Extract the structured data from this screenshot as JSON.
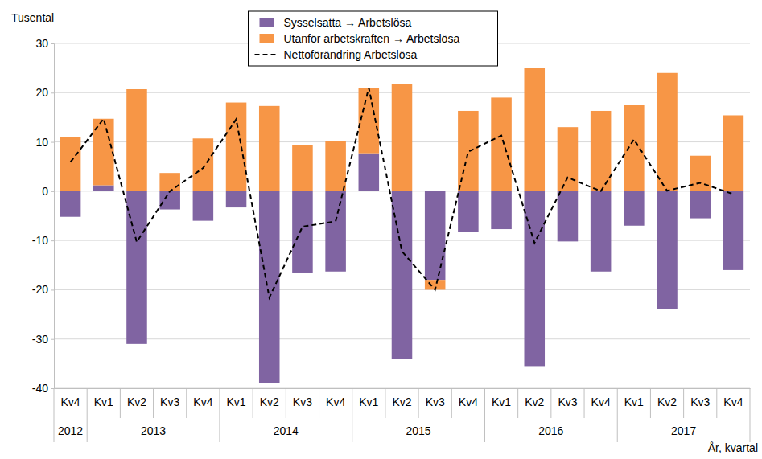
{
  "chart_data": {
    "type": "bar",
    "stacked": true,
    "grid": true,
    "legend": "top",
    "y_label": "Tusental",
    "x_label": "År, kvartal",
    "categories": [
      "Kv4",
      "Kv1",
      "Kv2",
      "Kv3",
      "Kv4",
      "Kv1",
      "Kv2",
      "Kv3",
      "Kv4",
      "Kv1",
      "Kv2",
      "Kv3",
      "Kv4",
      "Kv1",
      "Kv2",
      "Kv3",
      "Kv4",
      "Kv1",
      "Kv2",
      "Kv3",
      "Kv4"
    ],
    "x_groups": [
      {
        "label": "2012",
        "count": 1
      },
      {
        "label": "2013",
        "count": 4
      },
      {
        "label": "2014",
        "count": 4
      },
      {
        "label": "2015",
        "count": 4
      },
      {
        "label": "2016",
        "count": 4
      },
      {
        "label": "2017",
        "count": 4
      }
    ],
    "ylim": [
      -40,
      30
    ],
    "yticks": [
      -40,
      -30,
      -20,
      -10,
      0,
      10,
      20,
      30
    ],
    "series": [
      {
        "name": "Sysselsatta → Arbetslösa",
        "type": "bar",
        "color": "#8064a2",
        "values": [
          -5.2,
          1.2,
          -31,
          -3.7,
          -6,
          -3.3,
          -39,
          -16.5,
          -16.3,
          7.7,
          -34,
          -18,
          -8.3,
          -7.7,
          -35.5,
          -10.2,
          -16.3,
          -7,
          -24,
          -5.5,
          -16
        ]
      },
      {
        "name": "Utanför arbetskraften → Arbetslösa",
        "type": "bar",
        "color": "#f79646",
        "values": [
          11,
          13.5,
          20.7,
          3.7,
          10.7,
          18,
          17.3,
          9.3,
          10.2,
          13.3,
          21.8,
          -2,
          16.3,
          19,
          25,
          13,
          16.3,
          17.5,
          24,
          7.2,
          15.4
        ]
      },
      {
        "name": "Nettoförändring Arbetslösa",
        "type": "line",
        "color": "#000000",
        "line_style": "dashed",
        "values": [
          5.9,
          14.7,
          -10.3,
          0,
          4.7,
          14.6,
          -21.6,
          -7.2,
          -6.1,
          21,
          -12.2,
          -20,
          8,
          11.3,
          -10.5,
          2.8,
          0,
          10.5,
          0.1,
          1.7,
          -0.6
        ]
      }
    ]
  }
}
